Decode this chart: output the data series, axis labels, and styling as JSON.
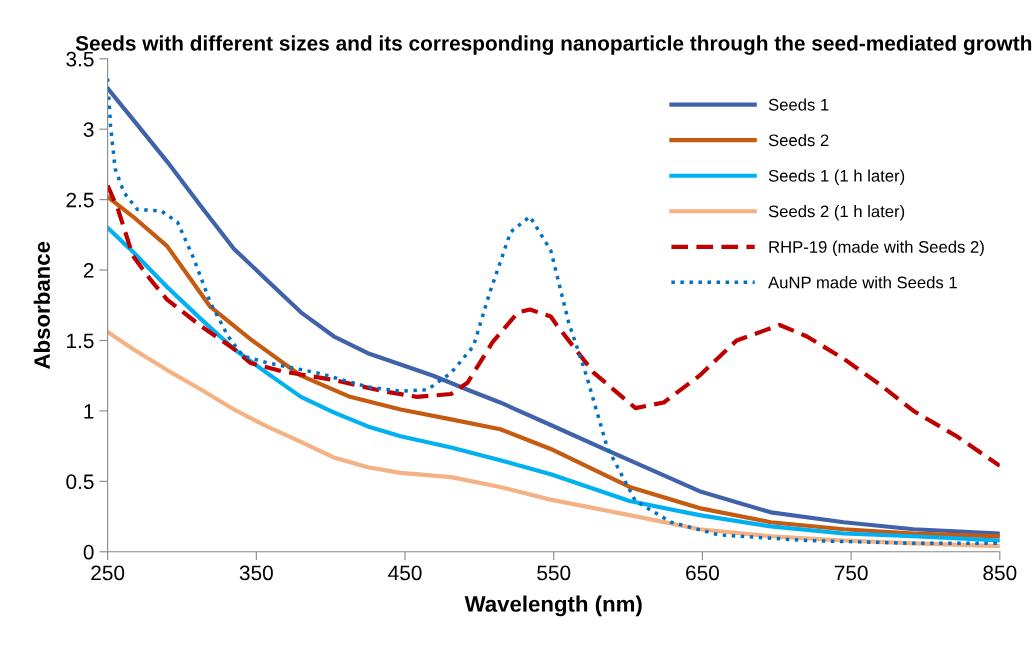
{
  "chart_data": {
    "type": "line",
    "title": "Seeds with different sizes and its corresponding nanoparticle through the seed-mediated growth",
    "xlabel": "Wavelength (nm)",
    "ylabel": "Absorbance",
    "xlim": [
      250,
      850
    ],
    "xticks": [
      250,
      350,
      450,
      550,
      650,
      750,
      850
    ],
    "ylim": [
      0,
      3.5
    ],
    "yticks": [
      0,
      0.5,
      1,
      1.5,
      2,
      2.5,
      3,
      3.5
    ],
    "grid": false,
    "legend": "top right",
    "series": [
      {
        "name": "Seeds 1",
        "color": "#4062a9",
        "line_style": "solid",
        "x": [
          250,
          267,
          290,
          313,
          335,
          357,
          380,
          402,
          425,
          447,
          469,
          492,
          514,
          548,
          586,
          648,
          696,
          745,
          792,
          850
        ],
        "values": [
          3.29,
          3.07,
          2.77,
          2.45,
          2.15,
          1.93,
          1.7,
          1.53,
          1.41,
          1.33,
          1.25,
          1.15,
          1.06,
          0.9,
          0.72,
          0.43,
          0.28,
          0.21,
          0.16,
          0.13
        ]
      },
      {
        "name": "Seeds 2",
        "color": "#c55a11",
        "line_style": "solid",
        "x": [
          250,
          267,
          290,
          319,
          346,
          380,
          413,
          447,
          481,
          514,
          548,
          601,
          648,
          696,
          745,
          792,
          850
        ],
        "values": [
          2.52,
          2.38,
          2.17,
          1.74,
          1.51,
          1.25,
          1.1,
          1.01,
          0.94,
          0.87,
          0.73,
          0.46,
          0.31,
          0.21,
          0.16,
          0.13,
          0.11
        ]
      },
      {
        "name": "Seeds 1 (1 h later)",
        "color": "#00b0f0",
        "line_style": "solid",
        "x": [
          250,
          267,
          290,
          313,
          335,
          357,
          380,
          402,
          425,
          447,
          481,
          514,
          548,
          601,
          648,
          696,
          745,
          792,
          850
        ],
        "values": [
          2.3,
          2.13,
          1.88,
          1.65,
          1.44,
          1.27,
          1.1,
          0.99,
          0.89,
          0.82,
          0.74,
          0.65,
          0.55,
          0.36,
          0.26,
          0.18,
          0.13,
          0.11,
          0.08
        ]
      },
      {
        "name": "Seeds 2 (1 h later)",
        "color": "#f4b183",
        "line_style": "solid",
        "x": [
          250,
          267,
          290,
          313,
          335,
          357,
          380,
          402,
          425,
          447,
          481,
          514,
          548,
          601,
          648,
          696,
          745,
          792,
          850
        ],
        "values": [
          1.56,
          1.44,
          1.29,
          1.15,
          1.01,
          0.89,
          0.78,
          0.67,
          0.6,
          0.56,
          0.53,
          0.46,
          0.37,
          0.26,
          0.16,
          0.11,
          0.08,
          0.06,
          0.04
        ]
      },
      {
        "name": "RHP-19 (made with Seeds 2)",
        "color": "#c00000",
        "line_style": "dashed",
        "x": [
          250,
          257,
          267,
          279,
          290,
          313,
          335,
          346,
          368,
          402,
          435,
          458,
          481,
          492,
          509,
          526,
          534,
          548,
          552,
          577,
          605,
          624,
          648,
          673,
          702,
          720,
          745,
          769,
          792,
          821,
          850
        ],
        "values": [
          2.6,
          2.43,
          2.1,
          1.93,
          1.79,
          1.6,
          1.44,
          1.34,
          1.28,
          1.22,
          1.14,
          1.1,
          1.12,
          1.2,
          1.49,
          1.7,
          1.72,
          1.67,
          1.61,
          1.27,
          1.02,
          1.06,
          1.25,
          1.5,
          1.61,
          1.53,
          1.37,
          1.19,
          1.0,
          0.82,
          0.61
        ]
      },
      {
        "name": "AuNP made with Seeds 1",
        "color": "#0070c0",
        "line_style": "dotted",
        "x": [
          250,
          252,
          255,
          261,
          270,
          286,
          297,
          308,
          319,
          331,
          341,
          358,
          391,
          425,
          447,
          465,
          481,
          496,
          507,
          521,
          534,
          548,
          560,
          572,
          586,
          605,
          629,
          661,
          720,
          792,
          850
        ],
        "values": [
          3.36,
          3.02,
          2.72,
          2.55,
          2.43,
          2.42,
          2.34,
          2.08,
          1.77,
          1.53,
          1.39,
          1.34,
          1.27,
          1.17,
          1.14,
          1.15,
          1.27,
          1.46,
          1.84,
          2.27,
          2.38,
          2.14,
          1.63,
          1.25,
          0.74,
          0.36,
          0.21,
          0.12,
          0.08,
          0.06,
          0.06
        ]
      }
    ]
  }
}
